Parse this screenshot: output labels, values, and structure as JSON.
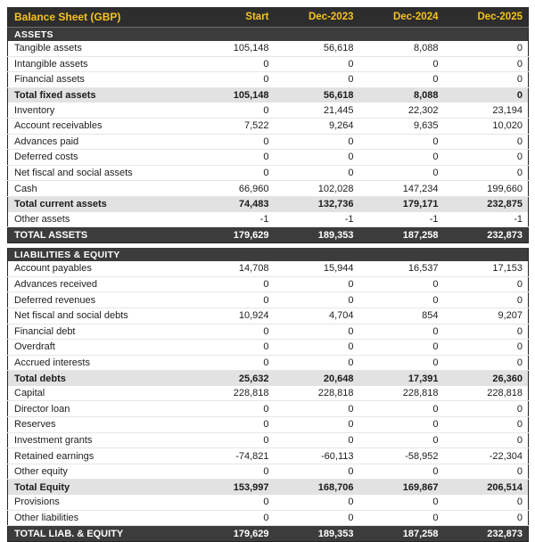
{
  "table": {
    "title": "Balance Sheet (GBP)",
    "columns": [
      "Start",
      "Dec-2023",
      "Dec-2024",
      "Dec-2025"
    ],
    "colors": {
      "header_bg": "#2d2d2d",
      "accent_yellow": "#f6c21e",
      "section_bg": "#3c3c3c",
      "subtotal_bg": "#e2e2e2",
      "row_border": "#e6e6e6",
      "text_dark": "#1d1d1d",
      "text_light": "#ffffff"
    },
    "rows": [
      {
        "type": "section",
        "label": "ASSETS"
      },
      {
        "type": "data",
        "label": "Tangible assets",
        "values": [
          "105,148",
          "56,618",
          "8,088",
          "0"
        ]
      },
      {
        "type": "data",
        "label": "Intangible assets",
        "values": [
          "0",
          "0",
          "0",
          "0"
        ]
      },
      {
        "type": "data",
        "label": "Financial assets",
        "values": [
          "0",
          "0",
          "0",
          "0"
        ]
      },
      {
        "type": "subtotal",
        "label": "Total fixed assets",
        "values": [
          "105,148",
          "56,618",
          "8,088",
          "0"
        ]
      },
      {
        "type": "data",
        "label": "Inventory",
        "values": [
          "0",
          "21,445",
          "22,302",
          "23,194"
        ]
      },
      {
        "type": "data",
        "label": "Account receivables",
        "values": [
          "7,522",
          "9,264",
          "9,635",
          "10,020"
        ]
      },
      {
        "type": "data",
        "label": "Advances paid",
        "values": [
          "0",
          "0",
          "0",
          "0"
        ]
      },
      {
        "type": "data",
        "label": "Deferred costs",
        "values": [
          "0",
          "0",
          "0",
          "0"
        ]
      },
      {
        "type": "data",
        "label": "Net fiscal and social assets",
        "values": [
          "0",
          "0",
          "0",
          "0"
        ]
      },
      {
        "type": "data",
        "label": "Cash",
        "values": [
          "66,960",
          "102,028",
          "147,234",
          "199,660"
        ]
      },
      {
        "type": "subtotal",
        "label": "Total current assets",
        "values": [
          "74,483",
          "132,736",
          "179,171",
          "232,875"
        ]
      },
      {
        "type": "data",
        "label": "Other assets",
        "values": [
          "-1",
          "-1",
          "-1",
          "-1"
        ]
      },
      {
        "type": "total",
        "label": "TOTAL ASSETS",
        "values": [
          "179,629",
          "189,353",
          "187,258",
          "232,873"
        ]
      },
      {
        "type": "gap"
      },
      {
        "type": "section",
        "label": "LIABILITIES & EQUITY"
      },
      {
        "type": "data",
        "label": "Account payables",
        "values": [
          "14,708",
          "15,944",
          "16,537",
          "17,153"
        ]
      },
      {
        "type": "data",
        "label": "Advances received",
        "values": [
          "0",
          "0",
          "0",
          "0"
        ]
      },
      {
        "type": "data",
        "label": "Deferred revenues",
        "values": [
          "0",
          "0",
          "0",
          "0"
        ]
      },
      {
        "type": "data",
        "label": "Net fiscal and social debts",
        "values": [
          "10,924",
          "4,704",
          "854",
          "9,207"
        ]
      },
      {
        "type": "data",
        "label": "Financial debt",
        "values": [
          "0",
          "0",
          "0",
          "0"
        ]
      },
      {
        "type": "data",
        "label": "Overdraft",
        "values": [
          "0",
          "0",
          "0",
          "0"
        ]
      },
      {
        "type": "data",
        "label": "Accrued interests",
        "values": [
          "0",
          "0",
          "0",
          "0"
        ]
      },
      {
        "type": "subtotal",
        "label": "Total debts",
        "values": [
          "25,632",
          "20,648",
          "17,391",
          "26,360"
        ]
      },
      {
        "type": "data",
        "label": "Capital",
        "values": [
          "228,818",
          "228,818",
          "228,818",
          "228,818"
        ]
      },
      {
        "type": "data",
        "label": "Director loan",
        "values": [
          "0",
          "0",
          "0",
          "0"
        ]
      },
      {
        "type": "data",
        "label": "Reserves",
        "values": [
          "0",
          "0",
          "0",
          "0"
        ]
      },
      {
        "type": "data",
        "label": "Investment grants",
        "values": [
          "0",
          "0",
          "0",
          "0"
        ]
      },
      {
        "type": "data",
        "label": "Retained earnings",
        "values": [
          "-74,821",
          "-60,113",
          "-58,952",
          "-22,304"
        ]
      },
      {
        "type": "data",
        "label": "Other equity",
        "values": [
          "0",
          "0",
          "0",
          "0"
        ]
      },
      {
        "type": "subtotal",
        "label": "Total Equity",
        "values": [
          "153,997",
          "168,706",
          "169,867",
          "206,514"
        ]
      },
      {
        "type": "data",
        "label": "Provisions",
        "values": [
          "0",
          "0",
          "0",
          "0"
        ]
      },
      {
        "type": "data",
        "label": "Other liabilities",
        "values": [
          "0",
          "0",
          "0",
          "0"
        ]
      },
      {
        "type": "total",
        "label": "TOTAL LIAB. & EQUITY",
        "values": [
          "179,629",
          "189,353",
          "187,258",
          "232,873"
        ]
      }
    ]
  }
}
